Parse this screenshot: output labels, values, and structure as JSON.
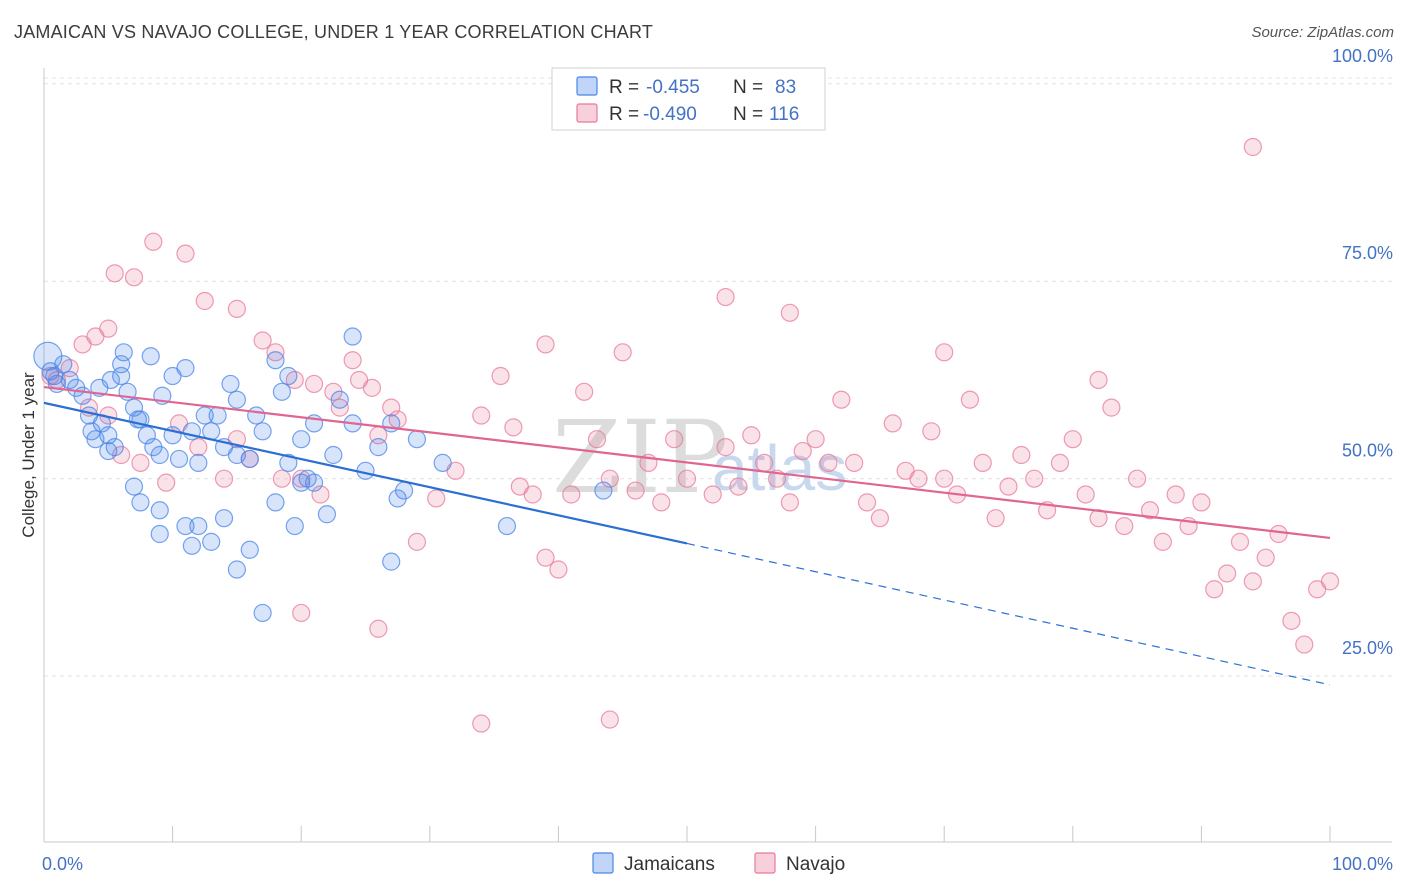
{
  "title": "JAMAICAN VS NAVAJO COLLEGE, UNDER 1 YEAR CORRELATION CHART",
  "source": "Source: ZipAtlas.com",
  "watermark": {
    "zip": "ZIP",
    "atlas": "atlas"
  },
  "colors": {
    "jamaicans": "#4a86e8",
    "navajo": "#e8799b",
    "jamaicans_line": "#2a6fd4",
    "navajo_line": "#e06590",
    "grid": "#e3e3e3"
  },
  "legend": {
    "series": [
      {
        "r_label": "R =",
        "r_value": "-0.455",
        "n_label": "N =",
        "n_value": "83"
      },
      {
        "r_label": "R =",
        "r_value": "-0.490",
        "n_label": "N =",
        "n_value": "116"
      }
    ]
  },
  "chart_data": {
    "type": "scatter",
    "xlabel": "",
    "ylabel": "College, Under 1 year",
    "xlim": [
      0,
      100
    ],
    "ylim": [
      4,
      102
    ],
    "x_tick_labels": [
      "0.0%",
      "100.0%"
    ],
    "y_ticks": [
      25,
      50,
      75,
      100
    ],
    "y_tick_labels": [
      "25.0%",
      "50.0%",
      "75.0%",
      "100.0%"
    ],
    "series": [
      {
        "name": "Jamaicans",
        "trend": {
          "x0": 0,
          "y0": 59.6,
          "x1": 50,
          "y1": 41.8,
          "dash_to_x": 100,
          "dash_to_y": 23.9
        },
        "points": [
          [
            0.3,
            65.5
          ],
          [
            0.5,
            63.6
          ],
          [
            0.8,
            63
          ],
          [
            1,
            62
          ],
          [
            1.5,
            64.5
          ],
          [
            2,
            62.5
          ],
          [
            2.5,
            61.5
          ],
          [
            3,
            60.5
          ],
          [
            3.5,
            58
          ],
          [
            4,
            55
          ],
          [
            4.5,
            57
          ],
          [
            5,
            55.5
          ],
          [
            5.5,
            54
          ],
          [
            6,
            63
          ],
          [
            6.5,
            61
          ],
          [
            7,
            59
          ],
          [
            7.5,
            57.5
          ],
          [
            8,
            55.5
          ],
          [
            8.5,
            54
          ],
          [
            9,
            53
          ],
          [
            3.7,
            56
          ],
          [
            4.3,
            61.5
          ],
          [
            5.2,
            62.5
          ],
          [
            6.2,
            66
          ],
          [
            7.3,
            57.5
          ],
          [
            8.3,
            65.5
          ],
          [
            9.2,
            60.5
          ],
          [
            10,
            55.5
          ],
          [
            10.5,
            52.5
          ],
          [
            11,
            64
          ],
          [
            11.5,
            56
          ],
          [
            12,
            52
          ],
          [
            12.5,
            58
          ],
          [
            13,
            56
          ],
          [
            13.5,
            58
          ],
          [
            14,
            54
          ],
          [
            14.5,
            62
          ],
          [
            15,
            53
          ],
          [
            16,
            52.5
          ],
          [
            16.5,
            58
          ],
          [
            17,
            56
          ],
          [
            18,
            65
          ],
          [
            18.5,
            61
          ],
          [
            19,
            52
          ],
          [
            19.5,
            44
          ],
          [
            20,
            49.5
          ],
          [
            20.5,
            50
          ],
          [
            21,
            57
          ],
          [
            22,
            45.5
          ],
          [
            22.5,
            53
          ],
          [
            24,
            68
          ],
          [
            24,
            57
          ],
          [
            26,
            54
          ],
          [
            27,
            57
          ],
          [
            27,
            39.5
          ],
          [
            28,
            48.5
          ],
          [
            29,
            55
          ],
          [
            11,
            44
          ],
          [
            12,
            44
          ],
          [
            13,
            42
          ],
          [
            14,
            45
          ],
          [
            15,
            38.5
          ],
          [
            16,
            41
          ],
          [
            17,
            33
          ],
          [
            7,
            49
          ],
          [
            7.5,
            47
          ],
          [
            9,
            46
          ],
          [
            9,
            43
          ],
          [
            11.5,
            41.5
          ],
          [
            43.5,
            48.5
          ],
          [
            36,
            44
          ],
          [
            27.5,
            47.5
          ],
          [
            21,
            49.5
          ],
          [
            31,
            52
          ],
          [
            5,
            53.5
          ],
          [
            15,
            60
          ],
          [
            19,
            63
          ],
          [
            6,
            64.5
          ],
          [
            10,
            63
          ],
          [
            25,
            51
          ],
          [
            20,
            55
          ],
          [
            23,
            60
          ],
          [
            18,
            47
          ]
        ]
      },
      {
        "name": "Navajo",
        "trend": {
          "x0": 0,
          "y0": 61.6,
          "x1": 100,
          "y1": 42.5
        },
        "points": [
          [
            0.5,
            63
          ],
          [
            1,
            62.5
          ],
          [
            2,
            64
          ],
          [
            3,
            67
          ],
          [
            4,
            68
          ],
          [
            5,
            69
          ],
          [
            5.5,
            76
          ],
          [
            7,
            75.5
          ],
          [
            8.5,
            80
          ],
          [
            11,
            78.5
          ],
          [
            12.5,
            72.5
          ],
          [
            15,
            71.5
          ],
          [
            17,
            67.5
          ],
          [
            18,
            66
          ],
          [
            19.5,
            62.5
          ],
          [
            21,
            62
          ],
          [
            22.5,
            61
          ],
          [
            24,
            65
          ],
          [
            25.5,
            61.5
          ],
          [
            27,
            59
          ],
          [
            3.5,
            59
          ],
          [
            5,
            58
          ],
          [
            6,
            53
          ],
          [
            7.5,
            52
          ],
          [
            9.5,
            49.5
          ],
          [
            10.5,
            57
          ],
          [
            12,
            54
          ],
          [
            14,
            50
          ],
          [
            15,
            55
          ],
          [
            16,
            52.5
          ],
          [
            18.5,
            50
          ],
          [
            20,
            50
          ],
          [
            21.5,
            48
          ],
          [
            23,
            59
          ],
          [
            24.5,
            62.5
          ],
          [
            26,
            55.5
          ],
          [
            27.5,
            57.5
          ],
          [
            29,
            42
          ],
          [
            30.5,
            47.5
          ],
          [
            32,
            51
          ],
          [
            34,
            58
          ],
          [
            35.5,
            63
          ],
          [
            36.5,
            56.5
          ],
          [
            37,
            49
          ],
          [
            38,
            48
          ],
          [
            39,
            40
          ],
          [
            40,
            38.5
          ],
          [
            41,
            48
          ],
          [
            42,
            61
          ],
          [
            43,
            55
          ],
          [
            44,
            50
          ],
          [
            46,
            48.5
          ],
          [
            47,
            52
          ],
          [
            48,
            47
          ],
          [
            49,
            55
          ],
          [
            50,
            50
          ],
          [
            52,
            48
          ],
          [
            53,
            54
          ],
          [
            54,
            49
          ],
          [
            55,
            55.5
          ],
          [
            56,
            52
          ],
          [
            57,
            50
          ],
          [
            58,
            47
          ],
          [
            59,
            53.5
          ],
          [
            60,
            55
          ],
          [
            61,
            52
          ],
          [
            62,
            60
          ],
          [
            63,
            52
          ],
          [
            64,
            47
          ],
          [
            65,
            45
          ],
          [
            66,
            57
          ],
          [
            67,
            51
          ],
          [
            68,
            50
          ],
          [
            69,
            56
          ],
          [
            70,
            50
          ],
          [
            71,
            48
          ],
          [
            72,
            60
          ],
          [
            73,
            52
          ],
          [
            74,
            45
          ],
          [
            75,
            49
          ],
          [
            76,
            53
          ],
          [
            77,
            50
          ],
          [
            78,
            46
          ],
          [
            79,
            52
          ],
          [
            80,
            55
          ],
          [
            81,
            48
          ],
          [
            82,
            45
          ],
          [
            83,
            59
          ],
          [
            84,
            44
          ],
          [
            85,
            50
          ],
          [
            86,
            46
          ],
          [
            87,
            42
          ],
          [
            88,
            48
          ],
          [
            89,
            44
          ],
          [
            90,
            47
          ],
          [
            91,
            36
          ],
          [
            92,
            38
          ],
          [
            93,
            42
          ],
          [
            94,
            37
          ],
          [
            95,
            40
          ],
          [
            96,
            43
          ],
          [
            97,
            32
          ],
          [
            98,
            29
          ],
          [
            99,
            36
          ],
          [
            100,
            37
          ],
          [
            94,
            92
          ],
          [
            53,
            73
          ],
          [
            58,
            71
          ],
          [
            70,
            66
          ],
          [
            82,
            62.5
          ],
          [
            39,
            67
          ],
          [
            45,
            66
          ],
          [
            34,
            19
          ],
          [
            44,
            19.5
          ],
          [
            26,
            31
          ],
          [
            20,
            33
          ]
        ]
      }
    ]
  }
}
